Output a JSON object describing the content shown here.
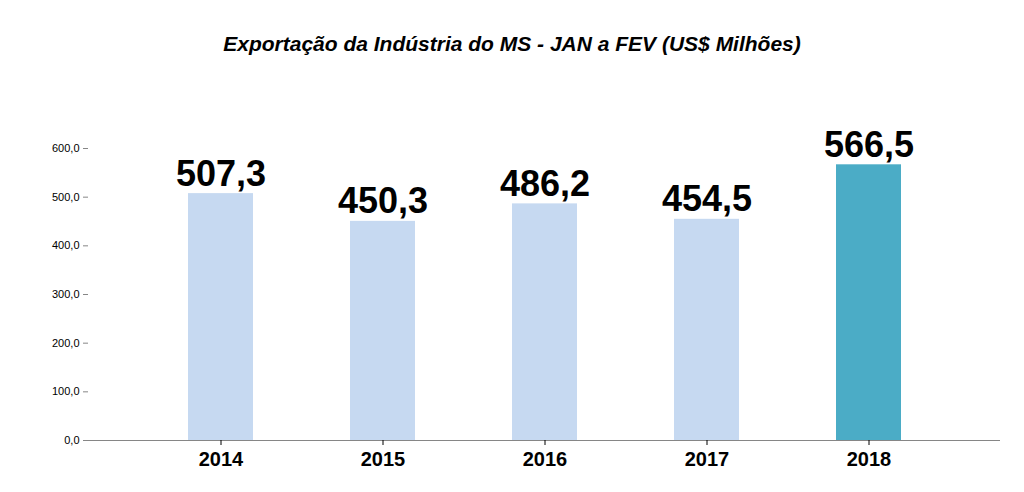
{
  "chart_data": {
    "type": "bar",
    "title": "Exportação da Indústria do MS - JAN a FEV (US$ Milhões)",
    "categories": [
      "2014",
      "2015",
      "2016",
      "2017",
      "2018"
    ],
    "values": [
      507.3,
      450.3,
      486.2,
      454.5,
      566.5
    ],
    "value_labels": [
      "507,3",
      "450,3",
      "486,2",
      "454,5",
      "566,5"
    ],
    "colors": [
      "#c6d9f1",
      "#c6d9f1",
      "#c6d9f1",
      "#c6d9f1",
      "#4bacc6"
    ],
    "ylim": [
      0,
      600
    ],
    "yticks": [
      {
        "value": 0,
        "label": "0,0"
      },
      {
        "value": 100,
        "label": "100,0"
      },
      {
        "value": 200,
        "label": "200,0"
      },
      {
        "value": 300,
        "label": "300,0"
      },
      {
        "value": 400,
        "label": "400,0"
      },
      {
        "value": 500,
        "label": "500,0"
      },
      {
        "value": 600,
        "label": "600,0"
      }
    ],
    "grid": false,
    "data_labels": true
  }
}
